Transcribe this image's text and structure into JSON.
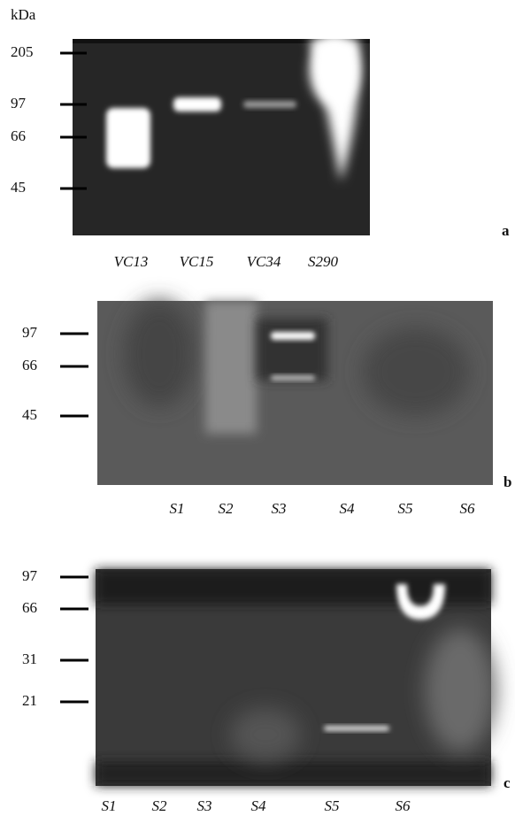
{
  "unit": "kDa",
  "panels": [
    {
      "letter": "a",
      "markers": [
        "205",
        "97",
        "66",
        "45"
      ],
      "lanes": [
        "VC13",
        "VC15",
        "VC34",
        "S290"
      ]
    },
    {
      "letter": "b",
      "markers": [
        "97",
        "66",
        "45"
      ],
      "lanes": [
        "S1",
        "S2",
        "S3",
        "S4",
        "S5",
        "S6"
      ]
    },
    {
      "letter": "c",
      "markers": [
        "97",
        "66",
        "31",
        "21"
      ],
      "lanes": [
        "S1",
        "S2",
        "S3",
        "S4",
        "S5",
        "S6"
      ]
    }
  ]
}
